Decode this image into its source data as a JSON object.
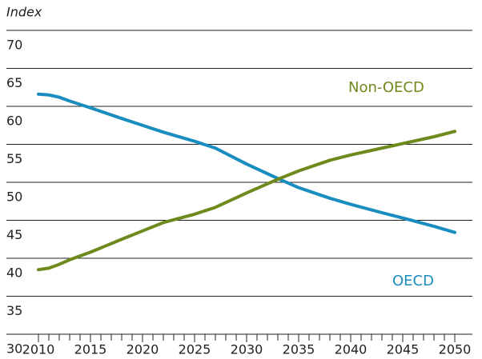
{
  "chart_data": {
    "type": "line",
    "y_label": "Index",
    "x": [
      2010,
      2011,
      2012,
      2013,
      2015,
      2018,
      2020,
      2022,
      2025,
      2027,
      2030,
      2033,
      2035,
      2038,
      2040,
      2043,
      2045,
      2048,
      2050
    ],
    "series": [
      {
        "name": "OECD",
        "color": "#1a8dc0",
        "values": [
          61.6,
          61.5,
          61.2,
          60.7,
          59.8,
          58.4,
          57.5,
          56.6,
          55.4,
          54.5,
          52.4,
          50.5,
          49.3,
          47.9,
          47.1,
          46.0,
          45.3,
          44.2,
          43.4
        ]
      },
      {
        "name": "Non-OECD",
        "color": "#6e8a1c",
        "values": [
          38.5,
          38.7,
          39.2,
          39.8,
          40.8,
          42.5,
          43.6,
          44.7,
          45.8,
          46.7,
          48.6,
          50.4,
          51.5,
          52.9,
          53.6,
          54.5,
          55.1,
          56.0,
          56.7
        ]
      }
    ],
    "xlim": [
      2010,
      2050
    ],
    "xticks": [
      2010,
      2015,
      2020,
      2025,
      2030,
      2035,
      2040,
      2045,
      2050
    ],
    "ylim": [
      30,
      70
    ],
    "yticks": [
      30,
      35,
      40,
      45,
      50,
      55,
      60,
      65,
      70
    ],
    "grid": true
  }
}
